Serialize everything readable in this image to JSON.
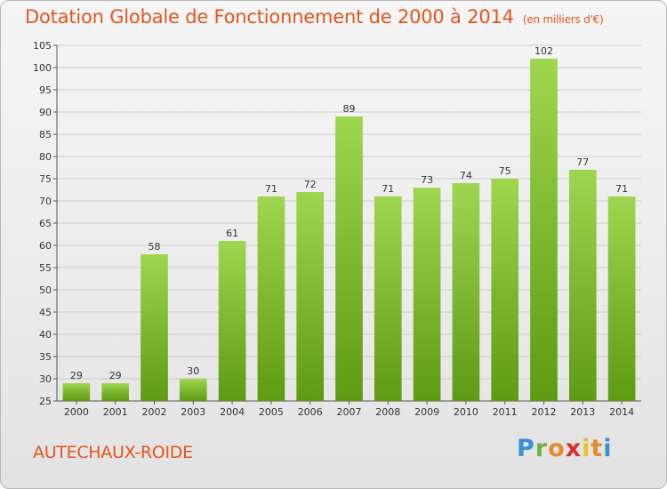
{
  "header": {
    "title": "Dotation Globale de Fonctionnement de 2000 à 2014",
    "unit": "(en milliers d'€)"
  },
  "footer": {
    "commune": "AUTECHAUX-ROIDE",
    "logo": {
      "letters": [
        "P",
        "r",
        "o",
        "x",
        "i",
        "t",
        "i"
      ]
    }
  },
  "colors": {
    "title": "#e2551f",
    "bar_top": "#9fd64f",
    "bar_bottom": "#5e9a12",
    "grid": "#cccccc"
  },
  "chart_data": {
    "type": "bar",
    "title": "Dotation Globale de Fonctionnement de 2000 à 2014",
    "subtitle": "(en milliers d'€)",
    "xlabel": "",
    "ylabel": "",
    "categories": [
      "2000",
      "2001",
      "2002",
      "2003",
      "2004",
      "2005",
      "2006",
      "2007",
      "2008",
      "2009",
      "2010",
      "2011",
      "2012",
      "2013",
      "2014"
    ],
    "values": [
      29,
      29,
      58,
      30,
      61,
      71,
      72,
      89,
      71,
      73,
      74,
      75,
      102,
      77,
      71
    ],
    "value_labels": [
      "29",
      "29",
      "58",
      "30",
      "61",
      "71",
      "72",
      "89",
      "71",
      "73",
      "74",
      "75",
      "102",
      "77",
      "71"
    ],
    "ylim": [
      25,
      105
    ],
    "yticks": [
      "25",
      "30",
      "35",
      "40",
      "45",
      "50",
      "55",
      "60",
      "65",
      "70",
      "75",
      "80",
      "85",
      "90",
      "95",
      "100",
      "105"
    ],
    "grid": true,
    "legend": "none"
  }
}
